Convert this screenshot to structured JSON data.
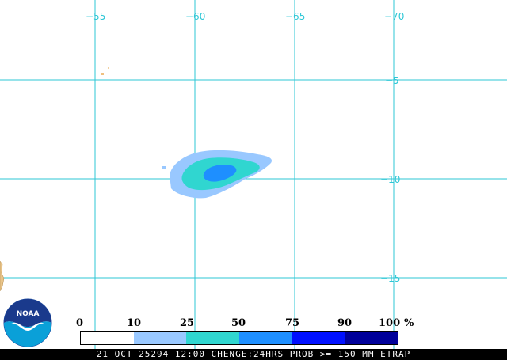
{
  "map": {
    "longitude_labels": [
      "−55",
      "−60",
      "−65",
      "−70"
    ],
    "latitude_labels": [
      "−5",
      "−10",
      "−15"
    ],
    "gridline_color": "#2ec7d6"
  },
  "legend": {
    "labels": [
      "0",
      "10",
      "25",
      "50",
      "75",
      "90",
      "100",
      "%"
    ],
    "colors": [
      "#ffffff",
      "#99c8ff",
      "#30d6d0",
      "#1e8fff",
      "#0010ff",
      "#00009a"
    ]
  },
  "footer": {
    "text": "21 OCT 25294 12:00 CHENGE:24HRS PROB >= 150 MM ETRAP"
  },
  "logo": {
    "text": "NOAA",
    "icon": "noaa-logo-icon"
  }
}
